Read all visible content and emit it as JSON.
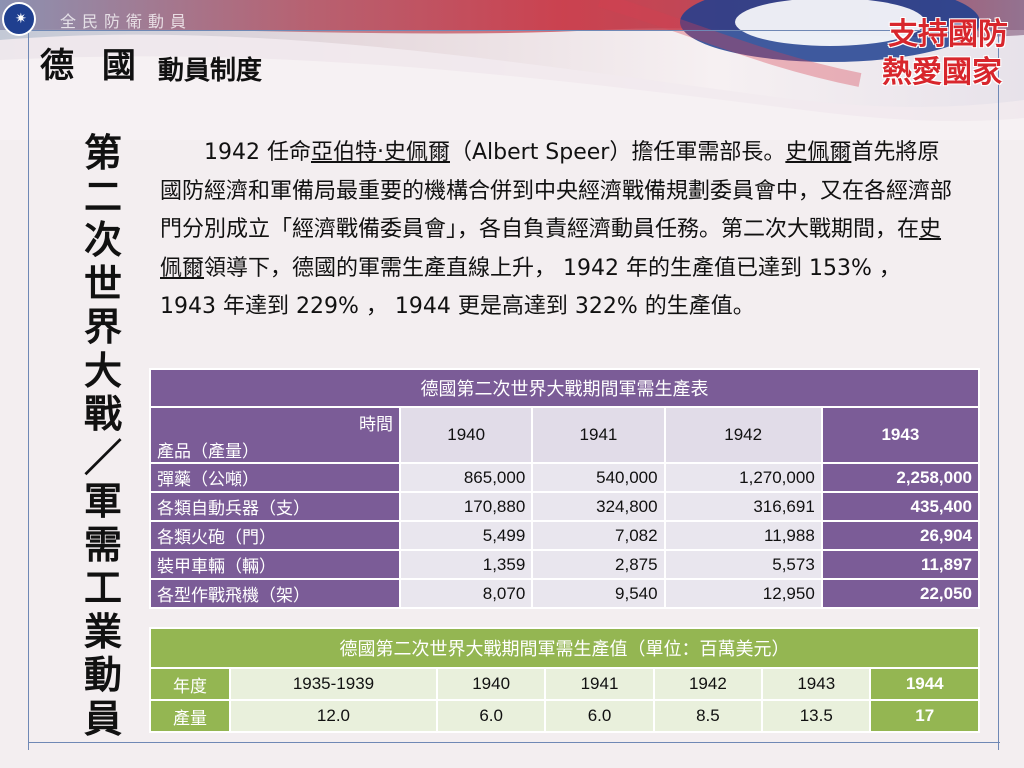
{
  "header": {
    "org_name": "全民防衛動員",
    "title_main": "德 國",
    "title_sub": "動員制度",
    "slogan_line1": "支持國防",
    "slogan_line2": "熱愛國家"
  },
  "side_title": [
    "第",
    "二",
    "次",
    "世",
    "界",
    "大",
    "戰",
    "／",
    "軍",
    "需",
    "工",
    "業",
    "動",
    "員"
  ],
  "paragraph": {
    "p1": "1942 任命",
    "p2": "亞伯特‧史佩爾",
    "p3": "（Albert Speer）擔任軍需部長。",
    "p4": "史佩爾",
    "p5": "首先將原國防經濟和軍備局最重要的機構合併到中央經濟戰備規劃委員會中，又在各經濟部門分別成立「經濟戰備委員會」，各自負責經濟動員任務。第二次大戰期間，在",
    "p6": "史佩爾",
    "p7": "領導下，德國的軍需生產直線上升， 1942 年的生產值已達到 153% ， 1943 年達到 229% ， 1944 更是高達到 322% 的生產值。"
  },
  "table1": {
    "caption": "德國第二次世界大戰期間軍需生產表",
    "corner_top": "時間",
    "corner_bottom": "產品（產量）",
    "years": [
      "1940",
      "1941",
      "1942",
      "1943"
    ],
    "rows": [
      {
        "label": "彈藥（公噸）",
        "values": [
          "865,000",
          "540,000",
          "1,270,000",
          "2,258,000"
        ]
      },
      {
        "label": "各類自動兵器（支）",
        "values": [
          "170,880",
          "324,800",
          "316,691",
          "435,400"
        ]
      },
      {
        "label": "各類火砲（門）",
        "values": [
          "5,499",
          "7,082",
          "11,988",
          "26,904"
        ]
      },
      {
        "label": "裝甲車輛（輛）",
        "values": [
          "1,359",
          "2,875",
          "5,573",
          "11,897"
        ]
      },
      {
        "label": "各型作戰飛機（架）",
        "values": [
          "8,070",
          "9,540",
          "12,950",
          "22,050"
        ]
      }
    ]
  },
  "table2": {
    "caption": "德國第二次世界大戰期間軍需生產值（單位：百萬美元）",
    "year_label": "年度",
    "value_label": "產量",
    "years": [
      "1935-1939",
      "1940",
      "1941",
      "1942",
      "1943",
      "1944"
    ],
    "values": [
      "12.0",
      "6.0",
      "6.0",
      "8.5",
      "13.5",
      "17"
    ]
  },
  "colors": {
    "purple": "#7b5c97",
    "green": "#94b652",
    "slogan_red": "#d8262c"
  }
}
